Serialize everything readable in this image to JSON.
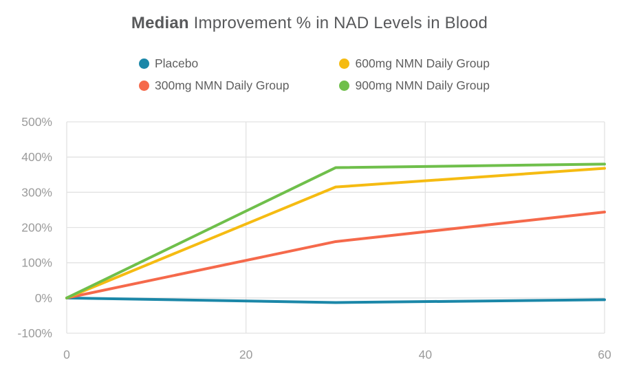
{
  "title": {
    "bold": "Median",
    "rest": " Improvement % in NAD Levels in Blood"
  },
  "colors": {
    "title": "#58595B",
    "legend_label": "#5F5F5F",
    "axis_label": "#9B9B9B",
    "grid": "#E2E2E2",
    "background": "#FFFFFF"
  },
  "chart_data": {
    "type": "line",
    "title": "Median Improvement % in NAD Levels in Blood",
    "xlabel": "",
    "ylabel": "",
    "x": [
      0,
      30,
      60
    ],
    "x_ticks": [
      0,
      20,
      40,
      60
    ],
    "y_ticks": [
      500,
      400,
      300,
      200,
      100,
      0,
      -100
    ],
    "y_tick_suffix": "%",
    "xlim": [
      0,
      60
    ],
    "ylim": [
      -100,
      500
    ],
    "grid": true,
    "legend_position": "top",
    "series": [
      {
        "name": "Placebo",
        "color": "#1B87A8",
        "values": [
          0,
          -13,
          -5
        ]
      },
      {
        "name": "300mg NMN Daily Group",
        "color": "#F5694B",
        "values": [
          0,
          160,
          244
        ]
      },
      {
        "name": "600mg NMN Daily Group",
        "color": "#F5BB12",
        "values": [
          0,
          315,
          368
        ]
      },
      {
        "name": "900mg NMN Daily Group",
        "color": "#6FBF4B",
        "values": [
          0,
          370,
          380
        ]
      }
    ]
  }
}
